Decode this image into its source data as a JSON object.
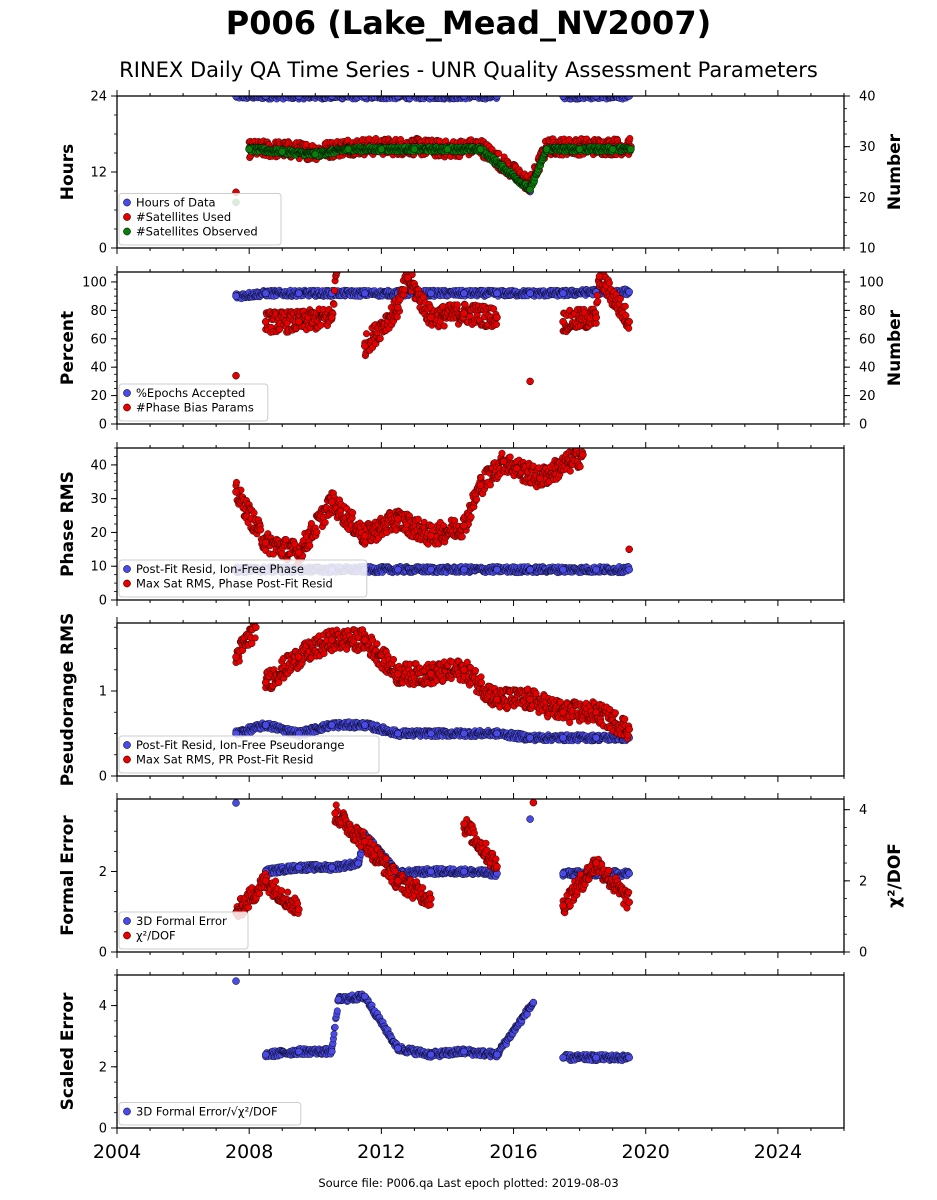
{
  "header": {
    "title": "P006 (Lake_Mead_NV2007)",
    "subtitle": "RINEX Daily QA Time Series - UNR Quality Assessment Parameters"
  },
  "footer": {
    "text": "Source file: P006.qa Last epoch plotted: 2019-08-03"
  },
  "colors": {
    "blue": "#4a4ae8",
    "red": "#e60000",
    "green": "#0a7d0a",
    "edge": "#000000"
  },
  "chart_data": [
    {
      "id": "hours-number",
      "type": "scatter",
      "xlim": [
        2004,
        2026
      ],
      "x_ticks": [
        2004,
        2008,
        2012,
        2016,
        2020,
        2024
      ],
      "ylabel": "Hours",
      "ylim": [
        0,
        24
      ],
      "y_ticks": [
        0,
        12,
        24
      ],
      "ylabel_right": "Number",
      "ylim_right": [
        10,
        40
      ],
      "y_ticks_right": [
        10,
        20,
        30,
        40
      ],
      "legend": "lower-left",
      "series": [
        {
          "name": "Hours of Data",
          "axis": "left",
          "color": "blue",
          "x": [
            2007.6,
            2008.5,
            2009.5,
            2010.5,
            2011.5,
            2012.5,
            2013.5,
            2014.5,
            2015.5,
            2016.5,
            2017.5,
            2018.5,
            2019.5
          ],
          "y": [
            24,
            24,
            24,
            24,
            24,
            24,
            24,
            24,
            24,
            8.9,
            24,
            24,
            24
          ]
        },
        {
          "name": "#Satellites Used",
          "axis": "right",
          "color": "red",
          "x": [
            2007.6,
            2008.0,
            2009.0,
            2010.0,
            2011.0,
            2012.0,
            2013.0,
            2014.0,
            2015.0,
            2016.5,
            2017.0,
            2018.0,
            2019.0,
            2019.55
          ],
          "y": [
            21,
            29.5,
            29.5,
            29,
            30,
            30,
            30,
            29.5,
            30,
            22.5,
            30,
            30,
            30,
            30
          ]
        },
        {
          "name": "#Satellites Observed",
          "axis": "right",
          "color": "green",
          "x": [
            2007.6,
            2008.0,
            2009.0,
            2010.0,
            2011.0,
            2012.0,
            2013.0,
            2014.0,
            2015.0,
            2016.5,
            2017.0,
            2018.0,
            2019.0,
            2019.55
          ],
          "y": [
            19,
            29.5,
            29,
            28.5,
            29.5,
            29.5,
            29.5,
            29.5,
            29.5,
            21.5,
            29.5,
            29.5,
            29.5,
            29.5
          ]
        }
      ]
    },
    {
      "id": "percent-number",
      "type": "scatter",
      "xlim": [
        2004,
        2026
      ],
      "ylabel": "Percent",
      "ylim": [
        0,
        107
      ],
      "y_ticks": [
        0,
        20,
        40,
        60,
        80,
        100
      ],
      "ylabel_right": "Number",
      "ylim_right": [
        0,
        107
      ],
      "y_ticks_right": [
        0,
        20,
        40,
        60,
        80,
        100
      ],
      "legend": "lower-left",
      "series": [
        {
          "name": "%Epochs Accepted",
          "axis": "left",
          "color": "blue",
          "x": [
            2007.6,
            2008.5,
            2009.5,
            2010.5,
            2011.5,
            2012.5,
            2013.5,
            2014.5,
            2015.5,
            2016.5,
            2017.5,
            2018.5,
            2019.5
          ],
          "y": [
            90,
            92,
            92,
            92,
            92,
            92,
            92,
            92,
            92,
            92,
            92,
            93,
            93
          ]
        },
        {
          "name": "#Phase Bias Params",
          "axis": "right",
          "color": "red",
          "x": [
            2007.6,
            2008.5,
            2009.5,
            2010.5,
            2010.65,
            2011.5,
            2012.5,
            2012.8,
            2013.5,
            2014.5,
            2015.5,
            2016.5,
            2017.5,
            2018.5,
            2018.6,
            2019.5
          ],
          "y": [
            34,
            72,
            72,
            75,
            107,
            55,
            82,
            103,
            75,
            78,
            75,
            30,
            72,
            75,
            104,
            72
          ]
        }
      ]
    },
    {
      "id": "phase-rms",
      "type": "scatter",
      "xlim": [
        2004,
        2026
      ],
      "ylabel": "Phase RMS",
      "ylim": [
        0,
        45
      ],
      "y_ticks": [
        0,
        10,
        20,
        30,
        40
      ],
      "legend": "lower-left",
      "series": [
        {
          "name": "Post-Fit Resid, Ion-Free Phase",
          "color": "blue",
          "x": [
            2007.6,
            2008.5,
            2009.5,
            2010.5,
            2011.5,
            2012.5,
            2013.5,
            2014.5,
            2015.5,
            2016.5,
            2017.5,
            2018.5,
            2019.5
          ],
          "y": [
            9,
            9,
            9,
            9,
            9,
            9,
            9,
            9,
            9,
            9,
            9,
            9,
            9
          ]
        },
        {
          "name": "Max Sat RMS, Phase Post-Fit Resid",
          "color": "red",
          "x": [
            2007.6,
            2008.5,
            2009.5,
            2010.5,
            2011.5,
            2012.5,
            2013.5,
            2014.5,
            2015.0,
            2015.7,
            2016.1,
            2016.8,
            2018.1,
            2019.5
          ],
          "y": [
            32,
            17,
            14,
            29,
            19,
            24,
            19,
            22,
            34,
            41,
            39,
            36,
            43,
            15
          ]
        }
      ]
    },
    {
      "id": "pseudorange-rms",
      "type": "scatter",
      "xlim": [
        2004,
        2026
      ],
      "ylabel": "Pseudorange RMS",
      "ylim": [
        0,
        1.8
      ],
      "y_ticks": [
        0,
        1
      ],
      "legend": "lower-left",
      "series": [
        {
          "name": "Post-Fit Resid, Ion-Free Pseudorange",
          "color": "blue",
          "x": [
            2007.6,
            2008.5,
            2009.5,
            2010.5,
            2011.5,
            2012.5,
            2013.5,
            2014.5,
            2015.5,
            2016.5,
            2017.5,
            2018.5,
            2019.5
          ],
          "y": [
            0.5,
            0.6,
            0.5,
            0.6,
            0.6,
            0.5,
            0.5,
            0.5,
            0.5,
            0.45,
            0.45,
            0.45,
            0.45
          ]
        },
        {
          "name": "Max Sat RMS, PR Post-Fit Resid",
          "color": "red",
          "x": [
            2007.6,
            2008.2,
            2008.5,
            2009.5,
            2010.5,
            2011.5,
            2012.5,
            2013.5,
            2014.5,
            2015.5,
            2016.5,
            2017.5,
            2018.5,
            2019.5
          ],
          "y": [
            1.4,
            1.75,
            1.1,
            1.4,
            1.6,
            1.6,
            1.2,
            1.2,
            1.25,
            0.9,
            0.9,
            0.75,
            0.75,
            0.55
          ]
        }
      ]
    },
    {
      "id": "formal-error",
      "type": "scatter",
      "xlim": [
        2004,
        2026
      ],
      "ylabel": "Formal Error",
      "ylim": [
        0,
        3.8
      ],
      "y_ticks": [
        0,
        2
      ],
      "ylabel_right": "χ²/DOF",
      "ylim_right": [
        0,
        4.3
      ],
      "y_ticks_right": [
        0,
        2,
        4
      ],
      "legend": "lower-left",
      "series": [
        {
          "name": "3D Formal Error",
          "axis": "left",
          "color": "blue",
          "x": [
            2007.6,
            2008.5,
            2009.5,
            2010.5,
            2011.3,
            2011.5,
            2012.5,
            2013.5,
            2014.5,
            2015.5,
            2016.5,
            2017.5,
            2018.5,
            2019.5
          ],
          "y": [
            3.7,
            2.0,
            2.1,
            2.1,
            2.2,
            2.9,
            1.95,
            2.0,
            2.0,
            1.95,
            3.3,
            1.95,
            1.95,
            1.95
          ]
        },
        {
          "name": "χ²/DOF",
          "axis": "right",
          "color": "red",
          "x": [
            2007.6,
            2008.5,
            2009.5,
            2010.6,
            2011.5,
            2012.5,
            2013.5,
            2014.5,
            2015.5,
            2016.6,
            2017.5,
            2018.5,
            2019.5
          ],
          "y": [
            1.1,
            2.0,
            1.2,
            3.9,
            3.1,
            2.0,
            1.5,
            3.6,
            2.4,
            4.2,
            1.3,
            2.5,
            1.4
          ]
        }
      ]
    },
    {
      "id": "scaled-error",
      "type": "scatter",
      "xlim": [
        2004,
        2026
      ],
      "x_tick_labels": [
        "2004",
        "2008",
        "2012",
        "2016",
        "2020",
        "2024"
      ],
      "ylabel": "Scaled Error",
      "ylim": [
        0,
        5
      ],
      "y_ticks": [
        0,
        2,
        4
      ],
      "legend": "lower-left",
      "series": [
        {
          "name": "3D Formal Error/√χ²/DOF",
          "color": "blue",
          "x": [
            2007.6,
            2008.5,
            2009.5,
            2010.5,
            2010.7,
            2011.5,
            2012.5,
            2013.5,
            2014.5,
            2015.5,
            2016.6,
            2017.5,
            2018.5,
            2019.5
          ],
          "y": [
            4.8,
            2.4,
            2.5,
            2.5,
            4.2,
            4.3,
            2.6,
            2.4,
            2.5,
            2.4,
            4.1,
            2.3,
            2.3,
            2.3
          ]
        }
      ]
    }
  ]
}
